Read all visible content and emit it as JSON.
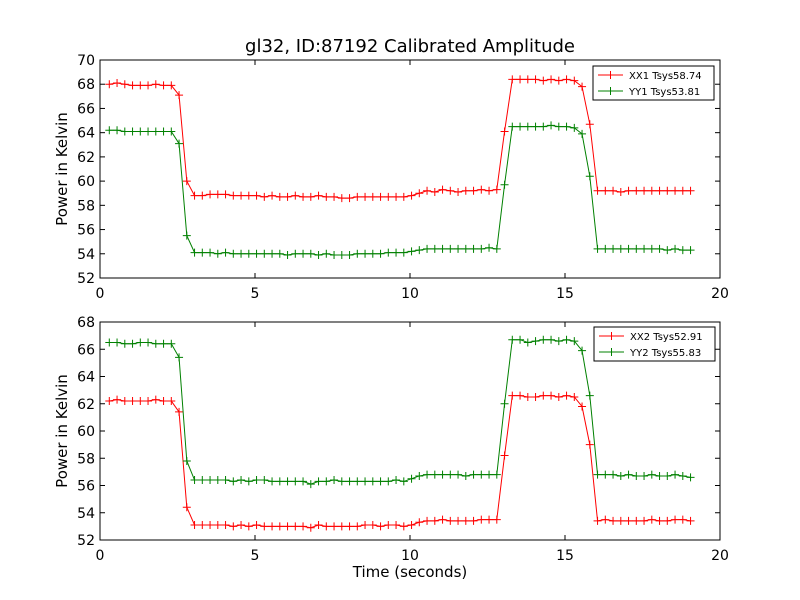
{
  "figure": {
    "title": "gl32, ID:87192 Calibrated Amplitude"
  },
  "colors": {
    "xx": "#ff0000",
    "yy": "#008000"
  },
  "chart_data": [
    {
      "type": "line",
      "title": "gl32, ID:87192 Calibrated Amplitude",
      "xlabel": "",
      "ylabel": "Power in Kelvin",
      "xlim": [
        0,
        20
      ],
      "ylim": [
        52,
        70
      ],
      "xticks": [
        0,
        5,
        10,
        15,
        20
      ],
      "yticks": [
        52,
        54,
        56,
        58,
        60,
        62,
        64,
        66,
        68,
        70
      ],
      "grid": false,
      "legend_position": "top-right",
      "x": [
        0.3,
        0.55,
        0.8,
        1.05,
        1.3,
        1.55,
        1.8,
        2.05,
        2.3,
        2.55,
        2.8,
        3.05,
        3.3,
        3.55,
        3.8,
        4.05,
        4.3,
        4.55,
        4.8,
        5.05,
        5.3,
        5.55,
        5.8,
        6.05,
        6.3,
        6.55,
        6.8,
        7.05,
        7.3,
        7.55,
        7.8,
        8.05,
        8.3,
        8.55,
        8.8,
        9.05,
        9.3,
        9.55,
        9.8,
        10.05,
        10.3,
        10.55,
        10.8,
        11.05,
        11.3,
        11.55,
        11.8,
        12.05,
        12.3,
        12.55,
        12.8,
        13.05,
        13.3,
        13.55,
        13.8,
        14.05,
        14.3,
        14.55,
        14.8,
        15.05,
        15.3,
        15.55,
        15.8,
        16.05,
        16.3,
        16.55,
        16.8,
        17.05,
        17.3,
        17.55,
        17.8,
        18.05,
        18.3,
        18.55,
        18.8,
        19.05
      ],
      "series": [
        {
          "name": "XX1 Tsys58.74",
          "color_key": "xx",
          "values": [
            68.0,
            68.1,
            68.0,
            67.9,
            67.9,
            67.9,
            68.0,
            67.9,
            67.9,
            67.1,
            60.0,
            58.8,
            58.8,
            58.9,
            58.9,
            58.9,
            58.8,
            58.8,
            58.8,
            58.8,
            58.7,
            58.8,
            58.7,
            58.7,
            58.8,
            58.7,
            58.7,
            58.8,
            58.7,
            58.7,
            58.6,
            58.6,
            58.7,
            58.7,
            58.7,
            58.7,
            58.7,
            58.7,
            58.7,
            58.8,
            59.0,
            59.2,
            59.1,
            59.3,
            59.2,
            59.1,
            59.2,
            59.2,
            59.3,
            59.2,
            59.3,
            64.1,
            68.4,
            68.4,
            68.4,
            68.4,
            68.3,
            68.4,
            68.3,
            68.4,
            68.3,
            67.8,
            64.7,
            59.2,
            59.2,
            59.2,
            59.1,
            59.2,
            59.2,
            59.2,
            59.2,
            59.2,
            59.2,
            59.2,
            59.2,
            59.2
          ]
        },
        {
          "name": "YY1 Tsys53.81",
          "color_key": "yy",
          "values": [
            64.2,
            64.2,
            64.1,
            64.1,
            64.1,
            64.1,
            64.1,
            64.1,
            64.1,
            63.1,
            55.5,
            54.1,
            54.1,
            54.1,
            54.0,
            54.1,
            54.0,
            54.0,
            54.0,
            54.0,
            54.0,
            54.0,
            54.0,
            53.9,
            54.0,
            54.0,
            54.0,
            53.9,
            54.0,
            53.9,
            53.9,
            53.9,
            54.0,
            54.0,
            54.0,
            54.0,
            54.1,
            54.1,
            54.1,
            54.2,
            54.3,
            54.4,
            54.4,
            54.4,
            54.4,
            54.4,
            54.4,
            54.4,
            54.4,
            54.5,
            54.4,
            59.7,
            64.5,
            64.5,
            64.5,
            64.5,
            64.5,
            64.6,
            64.5,
            64.5,
            64.4,
            63.9,
            60.4,
            54.4,
            54.4,
            54.4,
            54.4,
            54.4,
            54.4,
            54.4,
            54.4,
            54.4,
            54.3,
            54.4,
            54.3,
            54.3
          ]
        }
      ]
    },
    {
      "type": "line",
      "title": "",
      "xlabel": "Time (seconds)",
      "ylabel": "Power in Kelvin",
      "xlim": [
        0,
        20
      ],
      "ylim": [
        52,
        68
      ],
      "xticks": [
        0,
        5,
        10,
        15,
        20
      ],
      "yticks": [
        52,
        54,
        56,
        58,
        60,
        62,
        64,
        66,
        68
      ],
      "grid": false,
      "legend_position": "top-right",
      "x": [
        0.3,
        0.55,
        0.8,
        1.05,
        1.3,
        1.55,
        1.8,
        2.05,
        2.3,
        2.55,
        2.8,
        3.05,
        3.3,
        3.55,
        3.8,
        4.05,
        4.3,
        4.55,
        4.8,
        5.05,
        5.3,
        5.55,
        5.8,
        6.05,
        6.3,
        6.55,
        6.8,
        7.05,
        7.3,
        7.55,
        7.8,
        8.05,
        8.3,
        8.55,
        8.8,
        9.05,
        9.3,
        9.55,
        9.8,
        10.05,
        10.3,
        10.55,
        10.8,
        11.05,
        11.3,
        11.55,
        11.8,
        12.05,
        12.3,
        12.55,
        12.8,
        13.05,
        13.3,
        13.55,
        13.8,
        14.05,
        14.3,
        14.55,
        14.8,
        15.05,
        15.3,
        15.55,
        15.8,
        16.05,
        16.3,
        16.55,
        16.8,
        17.05,
        17.3,
        17.55,
        17.8,
        18.05,
        18.3,
        18.55,
        18.8,
        19.05
      ],
      "series": [
        {
          "name": "XX2 Tsys52.91",
          "color_key": "xx",
          "values": [
            62.2,
            62.3,
            62.2,
            62.2,
            62.2,
            62.2,
            62.3,
            62.2,
            62.2,
            61.4,
            54.4,
            53.1,
            53.1,
            53.1,
            53.1,
            53.1,
            53.0,
            53.1,
            53.0,
            53.1,
            53.0,
            53.0,
            53.0,
            53.0,
            53.0,
            53.0,
            52.9,
            53.1,
            53.0,
            53.0,
            53.0,
            53.0,
            53.0,
            53.1,
            53.1,
            53.0,
            53.1,
            53.1,
            53.0,
            53.1,
            53.3,
            53.4,
            53.4,
            53.5,
            53.4,
            53.4,
            53.4,
            53.4,
            53.5,
            53.5,
            53.5,
            58.2,
            62.6,
            62.6,
            62.5,
            62.5,
            62.6,
            62.6,
            62.5,
            62.6,
            62.5,
            61.8,
            59.0,
            53.4,
            53.5,
            53.4,
            53.4,
            53.4,
            53.4,
            53.4,
            53.5,
            53.4,
            53.4,
            53.5,
            53.5,
            53.4
          ]
        },
        {
          "name": "YY2 Tsys55.83",
          "color_key": "yy",
          "values": [
            66.5,
            66.5,
            66.4,
            66.4,
            66.5,
            66.5,
            66.4,
            66.4,
            66.4,
            65.4,
            57.8,
            56.4,
            56.4,
            56.4,
            56.4,
            56.4,
            56.3,
            56.4,
            56.3,
            56.4,
            56.4,
            56.3,
            56.3,
            56.3,
            56.3,
            56.3,
            56.1,
            56.3,
            56.3,
            56.4,
            56.3,
            56.3,
            56.3,
            56.3,
            56.3,
            56.3,
            56.3,
            56.4,
            56.3,
            56.5,
            56.7,
            56.8,
            56.8,
            56.8,
            56.8,
            56.8,
            56.7,
            56.8,
            56.8,
            56.8,
            56.8,
            62.0,
            66.7,
            66.7,
            66.5,
            66.6,
            66.7,
            66.7,
            66.6,
            66.7,
            66.6,
            65.9,
            62.6,
            56.8,
            56.8,
            56.8,
            56.7,
            56.8,
            56.7,
            56.7,
            56.8,
            56.7,
            56.7,
            56.8,
            56.7,
            56.6
          ]
        }
      ]
    }
  ]
}
